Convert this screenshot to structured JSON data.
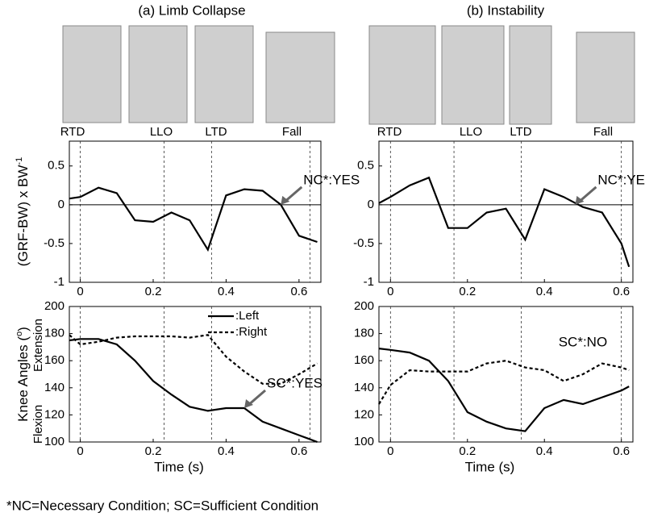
{
  "panels": [
    {
      "title": "(a) Limb Collapse",
      "events": [
        "RTD",
        "LLO",
        "LTD",
        "Fall"
      ]
    },
    {
      "title": "(b) Instability",
      "events": [
        "RTD",
        "LLO",
        "LTD",
        "Fall"
      ]
    }
  ],
  "footnote": "*NC=Necessary Condition; SC=Sufficient Condition",
  "chart_data": [
    {
      "type": "line",
      "ylabel_parts": [
        "(GRF-BW) x BW",
        "-1"
      ],
      "x": [
        -0.03,
        0,
        0.05,
        0.1,
        0.15,
        0.2,
        0.25,
        0.3,
        0.35,
        0.4,
        0.45,
        0.5,
        0.55,
        0.6,
        0.65
      ],
      "series": [
        {
          "name": "GRF",
          "color": "#000000",
          "dashed": false,
          "values": [
            0.08,
            0.1,
            0.22,
            0.15,
            -0.2,
            -0.22,
            -0.1,
            -0.2,
            -0.58,
            0.12,
            0.2,
            0.18,
            0.0,
            -0.4,
            -0.48
          ]
        }
      ],
      "xlim": [
        -0.03,
        0.66
      ],
      "ylim": [
        -1,
        0.82
      ],
      "xticks": [
        0,
        0.2,
        0.4,
        0.6
      ],
      "yticks": [
        -1,
        -0.5,
        0,
        0.5
      ],
      "zero_line": true,
      "event_lines": [
        0,
        0.23,
        0.36,
        0.63
      ],
      "annotations": [
        {
          "text": "NC*:YES",
          "x": 0.55,
          "y": 0
        }
      ],
      "legend": false
    },
    {
      "type": "line",
      "x": [
        -0.03,
        0,
        0.05,
        0.1,
        0.15,
        0.2,
        0.25,
        0.3,
        0.35,
        0.4,
        0.45,
        0.5,
        0.55,
        0.6,
        0.62
      ],
      "series": [
        {
          "name": "GRF",
          "color": "#000000",
          "dashed": false,
          "values": [
            0.02,
            0.1,
            0.25,
            0.35,
            -0.3,
            -0.3,
            -0.1,
            -0.05,
            -0.45,
            0.2,
            0.1,
            -0.03,
            -0.1,
            -0.5,
            -0.8
          ]
        }
      ],
      "xlim": [
        -0.03,
        0.63
      ],
      "ylim": [
        -1,
        0.82
      ],
      "xticks": [
        0,
        0.2,
        0.4,
        0.6
      ],
      "yticks": [
        -1,
        -0.5,
        0,
        0.5
      ],
      "zero_line": true,
      "event_lines": [
        0,
        0.165,
        0.34,
        0.6
      ],
      "annotations": [
        {
          "text": "NC*:YES",
          "x": 0.48,
          "y": 0
        }
      ],
      "legend": false
    },
    {
      "type": "line",
      "ylabel_parts": [
        "Knee Angles (",
        "o",
        ")"
      ],
      "ylabel_ends": [
        "Extension",
        "Flexion"
      ],
      "xlabel": "Time (s)",
      "x": [
        -0.03,
        0,
        0.05,
        0.1,
        0.15,
        0.2,
        0.25,
        0.3,
        0.35,
        0.4,
        0.45,
        0.5,
        0.55,
        0.6,
        0.65
      ],
      "series": [
        {
          "name": ":Left",
          "color": "#000000",
          "dashed": false,
          "values": [
            175,
            176,
            176,
            172,
            160,
            145,
            135,
            126,
            123,
            125,
            125,
            115,
            110,
            105,
            100
          ]
        },
        {
          "name": ":Right",
          "color": "#000000",
          "dashed": true,
          "values": [
            179,
            172,
            174,
            177,
            178,
            178,
            178,
            177,
            179,
            163,
            152,
            143,
            143,
            150,
            158
          ]
        }
      ],
      "xlim": [
        -0.03,
        0.66
      ],
      "ylim": [
        100,
        200
      ],
      "xticks": [
        0,
        0.2,
        0.4,
        0.6
      ],
      "yticks": [
        100,
        120,
        140,
        160,
        180,
        200
      ],
      "zero_line": false,
      "event_lines": [
        0,
        0.23,
        0.36,
        0.63
      ],
      "annotations": [
        {
          "text": "SC*:YES",
          "x": 0.45,
          "y": 125
        }
      ],
      "legend": true
    },
    {
      "type": "line",
      "xlabel": "Time (s)",
      "x": [
        -0.03,
        0,
        0.05,
        0.1,
        0.15,
        0.2,
        0.25,
        0.3,
        0.35,
        0.4,
        0.45,
        0.5,
        0.55,
        0.6,
        0.62
      ],
      "series": [
        {
          "name": ":Left",
          "color": "#000000",
          "dashed": false,
          "values": [
            169,
            168,
            166,
            160,
            145,
            122,
            115,
            110,
            108,
            125,
            131,
            128,
            133,
            138,
            141
          ]
        },
        {
          "name": ":Right",
          "color": "#000000",
          "dashed": true,
          "values": [
            128,
            142,
            153,
            152,
            152,
            152,
            158,
            160,
            155,
            153,
            145,
            150,
            158,
            155,
            153
          ]
        }
      ],
      "xlim": [
        -0.03,
        0.63
      ],
      "ylim": [
        100,
        200
      ],
      "xticks": [
        0,
        0.2,
        0.4,
        0.6
      ],
      "yticks": [
        100,
        120,
        140,
        160,
        180,
        200
      ],
      "zero_line": false,
      "event_lines": [
        0,
        0.165,
        0.34,
        0.6
      ],
      "annotations": [
        {
          "text": "SC*:NO",
          "y": 160,
          "x": 0.5
        }
      ],
      "legend": false
    }
  ]
}
